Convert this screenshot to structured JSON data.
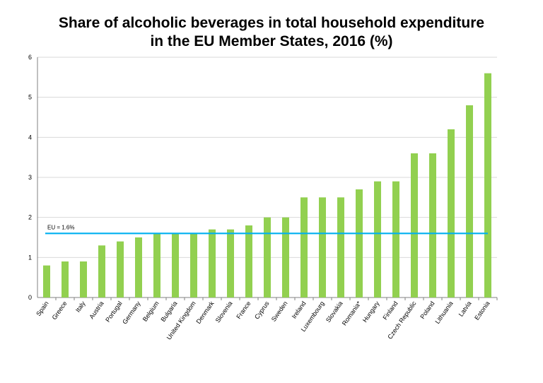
{
  "chart_data": {
    "type": "bar",
    "title_line1": "Share of alcoholic beverages in total household expenditure",
    "title_line2": "in the EU Member States, 2016 (%)",
    "categories": [
      "Spain",
      "Greece",
      "Italy",
      "Austria",
      "Portugal",
      "Germany",
      "Belgium",
      "Bulgaria",
      "United Kingdom",
      "Denmark",
      "Slovenia",
      "France",
      "Cyprus",
      "Sweden",
      "Ireland",
      "Luxembourg",
      "Slovakia",
      "Romania*",
      "Hungary",
      "Finland",
      "Czech Republic",
      "Poland",
      "Lithuania",
      "Latvia",
      "Estonia"
    ],
    "values": [
      0.8,
      0.9,
      0.9,
      1.3,
      1.4,
      1.5,
      1.6,
      1.6,
      1.6,
      1.7,
      1.7,
      1.8,
      2.0,
      2.0,
      2.5,
      2.5,
      2.5,
      2.7,
      2.9,
      2.9,
      3.6,
      3.6,
      4.2,
      4.8,
      5.6
    ],
    "yticks": [
      "0",
      "1",
      "2",
      "3",
      "4",
      "5",
      "6"
    ],
    "ylim": [
      0,
      6
    ],
    "grid": true,
    "reference_line": {
      "value": 1.6,
      "label": "EU = 1.6%"
    },
    "bar_color": "#92d050",
    "reference_color": "#00b0f0",
    "grid_color": "#d9d9d9"
  }
}
